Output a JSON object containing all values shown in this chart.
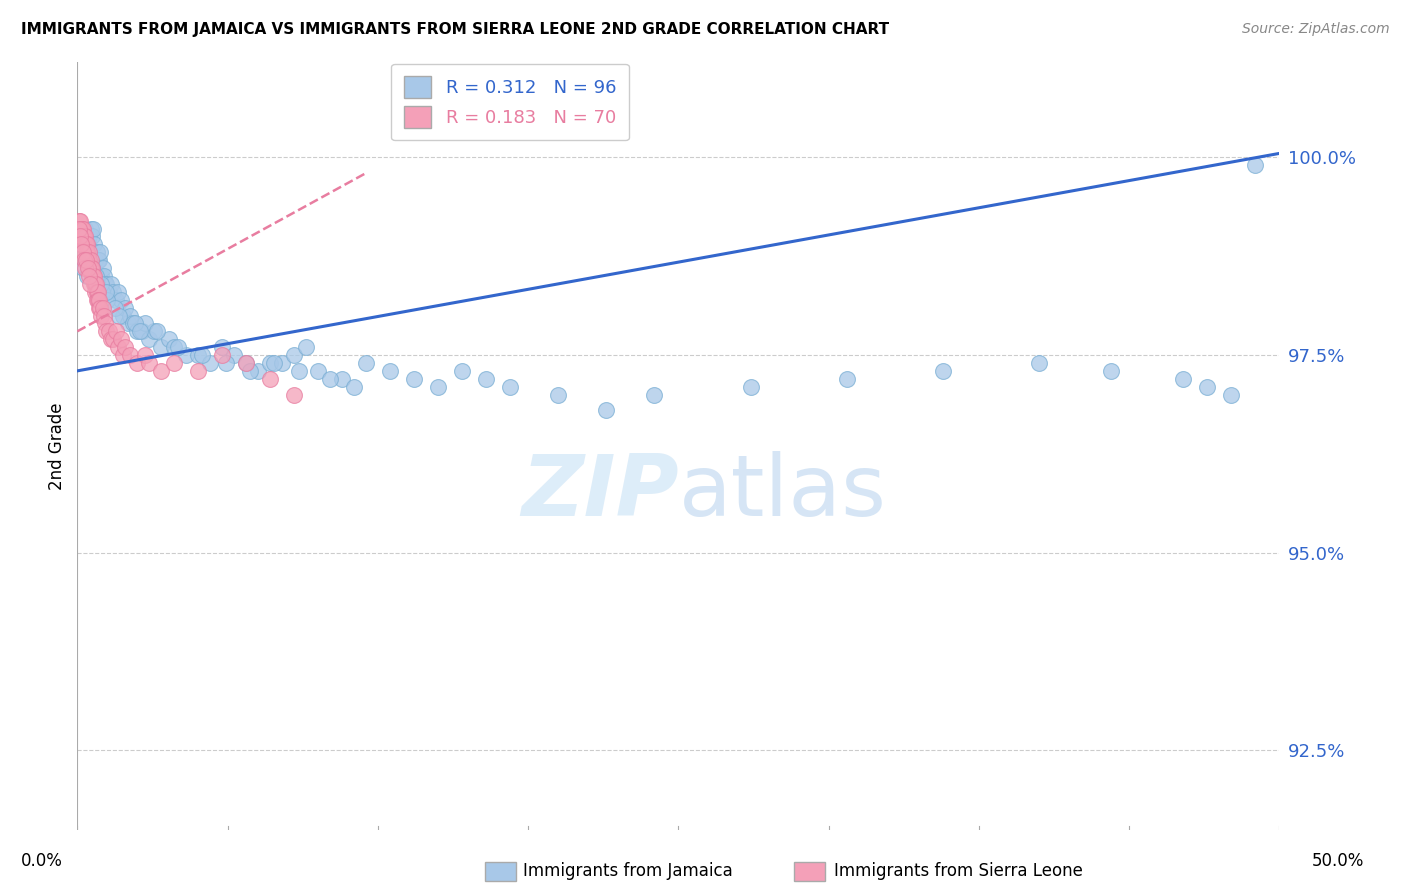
{
  "title": "IMMIGRANTS FROM JAMAICA VS IMMIGRANTS FROM SIERRA LEONE 2ND GRADE CORRELATION CHART",
  "source": "Source: ZipAtlas.com",
  "ylabel": "2nd Grade",
  "y_ticks": [
    92.5,
    95.0,
    97.5,
    100.0
  ],
  "y_tick_labels": [
    "92.5%",
    "95.0%",
    "97.5%",
    "100.0%"
  ],
  "x_range": [
    0.0,
    50.0
  ],
  "y_range": [
    91.5,
    101.2
  ],
  "legend_blue_r": "0.312",
  "legend_blue_n": "96",
  "legend_pink_r": "0.183",
  "legend_pink_n": "70",
  "blue_color": "#A8C8E8",
  "pink_color": "#F4A0B8",
  "blue_line_color": "#3366CC",
  "pink_line_color": "#E87DA0",
  "watermark_zip": "ZIP",
  "watermark_atlas": "atlas",
  "blue_line_x0": 0.0,
  "blue_line_y0": 97.3,
  "blue_line_x1": 50.0,
  "blue_line_y1": 100.05,
  "pink_line_x0": 0.0,
  "pink_line_y0": 97.8,
  "pink_line_x1": 12.0,
  "pink_line_y1": 99.8,
  "blue_scatter_x": [
    0.2,
    0.3,
    0.35,
    0.4,
    0.45,
    0.5,
    0.55,
    0.6,
    0.65,
    0.7,
    0.75,
    0.8,
    0.85,
    0.9,
    0.95,
    1.0,
    1.05,
    1.1,
    1.15,
    1.2,
    1.3,
    1.4,
    1.5,
    1.6,
    1.7,
    1.8,
    1.9,
    2.0,
    2.1,
    2.2,
    2.3,
    2.5,
    2.7,
    3.0,
    3.2,
    3.5,
    3.8,
    4.0,
    4.5,
    5.0,
    5.5,
    6.0,
    6.5,
    7.0,
    7.5,
    8.0,
    8.5,
    9.0,
    9.5,
    10.0,
    11.0,
    12.0,
    13.0,
    14.0,
    15.0,
    16.0,
    17.0,
    18.0,
    20.0,
    22.0,
    2.8,
    3.3,
    4.2,
    5.2,
    6.2,
    7.2,
    8.2,
    9.2,
    10.5,
    11.5,
    0.25,
    0.42,
    0.62,
    0.82,
    1.02,
    1.25,
    1.55,
    1.75,
    2.4,
    2.6,
    24.0,
    28.0,
    32.0,
    36.0,
    40.0,
    43.0,
    46.0,
    47.0,
    48.0,
    49.0,
    0.15,
    0.38,
    0.58,
    0.78,
    0.98,
    1.18
  ],
  "blue_scatter_y": [
    99.0,
    99.1,
    99.0,
    98.8,
    98.9,
    99.0,
    99.1,
    99.0,
    99.1,
    98.9,
    98.7,
    98.8,
    98.7,
    98.7,
    98.8,
    98.5,
    98.6,
    98.5,
    98.4,
    98.4,
    98.3,
    98.4,
    98.3,
    98.2,
    98.3,
    98.2,
    98.0,
    98.1,
    97.9,
    98.0,
    97.9,
    97.8,
    97.8,
    97.7,
    97.8,
    97.6,
    97.7,
    97.6,
    97.5,
    97.5,
    97.4,
    97.6,
    97.5,
    97.4,
    97.3,
    97.4,
    97.4,
    97.5,
    97.6,
    97.3,
    97.2,
    97.4,
    97.3,
    97.2,
    97.1,
    97.3,
    97.2,
    97.1,
    97.0,
    96.8,
    97.9,
    97.8,
    97.6,
    97.5,
    97.4,
    97.3,
    97.4,
    97.3,
    97.2,
    97.1,
    98.6,
    98.5,
    98.6,
    98.4,
    98.3,
    98.2,
    98.1,
    98.0,
    97.9,
    97.8,
    97.0,
    97.1,
    97.2,
    97.3,
    97.4,
    97.3,
    97.2,
    97.1,
    97.0,
    99.9,
    98.9,
    98.7,
    98.6,
    98.5,
    98.4,
    98.3
  ],
  "pink_scatter_x": [
    0.05,
    0.1,
    0.12,
    0.15,
    0.18,
    0.2,
    0.22,
    0.25,
    0.28,
    0.3,
    0.32,
    0.35,
    0.38,
    0.4,
    0.42,
    0.45,
    0.48,
    0.5,
    0.52,
    0.55,
    0.58,
    0.6,
    0.62,
    0.65,
    0.68,
    0.7,
    0.72,
    0.75,
    0.78,
    0.8,
    0.82,
    0.85,
    0.88,
    0.9,
    0.92,
    0.95,
    1.0,
    1.05,
    1.1,
    1.15,
    1.2,
    1.3,
    1.4,
    1.5,
    1.6,
    1.7,
    1.8,
    1.9,
    2.0,
    2.2,
    2.5,
    2.8,
    3.0,
    3.5,
    4.0,
    5.0,
    6.0,
    7.0,
    8.0,
    9.0,
    0.08,
    0.13,
    0.17,
    0.23,
    0.27,
    0.33,
    0.37,
    0.43,
    0.47,
    0.53
  ],
  "pink_scatter_y": [
    99.2,
    99.1,
    99.2,
    99.1,
    99.0,
    99.1,
    99.0,
    99.1,
    99.0,
    98.9,
    99.0,
    98.9,
    98.8,
    98.9,
    98.8,
    98.7,
    98.8,
    98.7,
    98.6,
    98.7,
    98.6,
    98.5,
    98.6,
    98.5,
    98.4,
    98.5,
    98.4,
    98.3,
    98.4,
    98.3,
    98.2,
    98.3,
    98.2,
    98.1,
    98.2,
    98.1,
    98.0,
    98.1,
    98.0,
    97.9,
    97.8,
    97.8,
    97.7,
    97.7,
    97.8,
    97.6,
    97.7,
    97.5,
    97.6,
    97.5,
    97.4,
    97.5,
    97.4,
    97.3,
    97.4,
    97.3,
    97.5,
    97.4,
    97.2,
    97.0,
    99.1,
    99.0,
    98.9,
    98.8,
    98.7,
    98.6,
    98.7,
    98.6,
    98.5,
    98.4
  ]
}
